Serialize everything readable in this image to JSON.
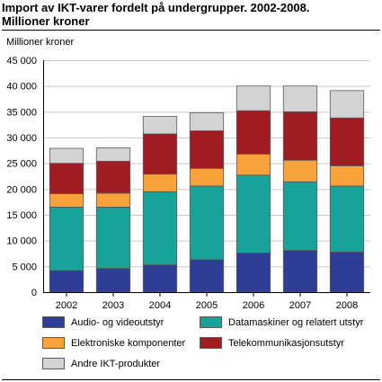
{
  "title_line1": "Import av IKT-varer fordelt på undergrupper. 2002-2008.",
  "title_line2": "Millioner kroner",
  "chart_data": {
    "type": "bar",
    "stacked": true,
    "ylabel": "Millioner kroner",
    "ylim": [
      0,
      45000
    ],
    "yticks": [
      0,
      5000,
      10000,
      15000,
      20000,
      25000,
      30000,
      35000,
      40000,
      45000
    ],
    "ytick_labels": [
      "0",
      "5 000",
      "10 000",
      "15 000",
      "20 000",
      "25 000",
      "30 000",
      "35 000",
      "40 000",
      "45 000"
    ],
    "grid": true,
    "legend_position": "bottom",
    "categories": [
      "2002",
      "2003",
      "2004",
      "2005",
      "2006",
      "2007",
      "2008"
    ],
    "series": [
      {
        "name": "Audio- og videoutstyr",
        "color": "#2e3d96",
        "values": [
          4200,
          4600,
          5300,
          6300,
          7600,
          8100,
          7800
        ]
      },
      {
        "name": "Datamaskiner og relatert utstyr",
        "color": "#17a39a",
        "values": [
          12300,
          11900,
          14200,
          14300,
          15100,
          13300,
          12800
        ]
      },
      {
        "name": "Elektroniske komponenter",
        "color": "#f7a23b",
        "values": [
          2600,
          2700,
          3400,
          3400,
          4100,
          4200,
          3900
        ]
      },
      {
        "name": "Telekommunikasjonsutstyr",
        "color": "#a01c23",
        "values": [
          5900,
          6200,
          7800,
          7300,
          8400,
          9400,
          9300
        ]
      },
      {
        "name": "Andre IKT-produkter",
        "color": "#d3d3d3",
        "values": [
          2900,
          2600,
          3400,
          3500,
          4800,
          5000,
          5300
        ]
      }
    ]
  }
}
